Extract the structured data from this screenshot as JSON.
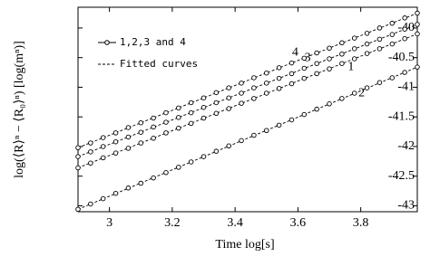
{
  "chart_data": {
    "type": "scatter",
    "xlabel": "Time log[s]",
    "ylabel": "log(⟨R⟩ⁿ − ⟨R₀⟩ⁿ)  [log(mⁿ)]",
    "xlim": [
      2.9,
      3.98
    ],
    "ylim": [
      -43.1,
      -39.65
    ],
    "xticks": [
      3,
      3.2,
      3.4,
      3.6,
      3.8
    ],
    "yticks": [
      -40,
      -40.5,
      -41,
      -41.5,
      -42,
      -42.5,
      -43
    ],
    "legend": [
      {
        "label": "1,2,3 and 4",
        "style": "markers"
      },
      {
        "label": "Fitted curves",
        "style": "dashed"
      }
    ],
    "x": [
      2.9,
      2.94,
      2.98,
      3.02,
      3.06,
      3.1,
      3.14,
      3.18,
      3.22,
      3.26,
      3.3,
      3.34,
      3.38,
      3.42,
      3.46,
      3.5,
      3.54,
      3.58,
      3.62,
      3.66,
      3.7,
      3.74,
      3.78,
      3.82,
      3.86,
      3.9,
      3.94,
      3.98
    ],
    "series": [
      {
        "name": "1",
        "color": "#000000",
        "values": [
          -42.36,
          -42.28,
          -42.19,
          -42.11,
          -42.03,
          -41.94,
          -41.86,
          -41.77,
          -41.69,
          -41.61,
          -41.52,
          -41.44,
          -41.36,
          -41.27,
          -41.19,
          -41.1,
          -41.02,
          -40.94,
          -40.85,
          -40.77,
          -40.69,
          -40.6,
          -40.52,
          -40.43,
          -40.35,
          -40.27,
          -40.18,
          -40.1
        ]
      },
      {
        "name": "2",
        "color": "#000000",
        "values": [
          -43.06,
          -42.97,
          -42.88,
          -42.79,
          -42.7,
          -42.62,
          -42.53,
          -42.44,
          -42.35,
          -42.26,
          -42.17,
          -42.08,
          -41.99,
          -41.9,
          -41.81,
          -41.73,
          -41.64,
          -41.55,
          -41.46,
          -41.37,
          -41.28,
          -41.19,
          -41.1,
          -41.01,
          -40.92,
          -40.84,
          -40.75,
          -40.66
        ]
      },
      {
        "name": "3",
        "color": "#000000",
        "values": [
          -42.17,
          -42.09,
          -42,
          -41.92,
          -41.84,
          -41.76,
          -41.67,
          -41.59,
          -41.51,
          -41.43,
          -41.34,
          -41.26,
          -41.18,
          -41.1,
          -41.01,
          -40.93,
          -40.85,
          -40.77,
          -40.68,
          -40.6,
          -40.52,
          -40.44,
          -40.35,
          -40.27,
          -40.19,
          -40.11,
          -40.02,
          -39.94
        ]
      },
      {
        "name": "4",
        "color": "#000000",
        "values": [
          -42.02,
          -41.94,
          -41.85,
          -41.77,
          -41.68,
          -41.6,
          -41.52,
          -41.43,
          -41.35,
          -41.26,
          -41.18,
          -41.09,
          -41.01,
          -40.93,
          -40.84,
          -40.76,
          -40.67,
          -40.59,
          -40.51,
          -40.42,
          -40.34,
          -40.25,
          -40.17,
          -40.09,
          -40,
          -39.92,
          -39.83,
          -39.75
        ]
      }
    ],
    "fits": [
      {
        "x": [
          2.9,
          3.98
        ],
        "values": [
          -42.36,
          -40.1
        ]
      },
      {
        "x": [
          2.9,
          3.98
        ],
        "values": [
          -43.06,
          -40.66
        ]
      },
      {
        "x": [
          2.9,
          3.98
        ],
        "values": [
          -42.17,
          -39.94
        ]
      },
      {
        "x": [
          2.9,
          3.98
        ],
        "values": [
          -42.02,
          -39.75
        ]
      }
    ]
  }
}
